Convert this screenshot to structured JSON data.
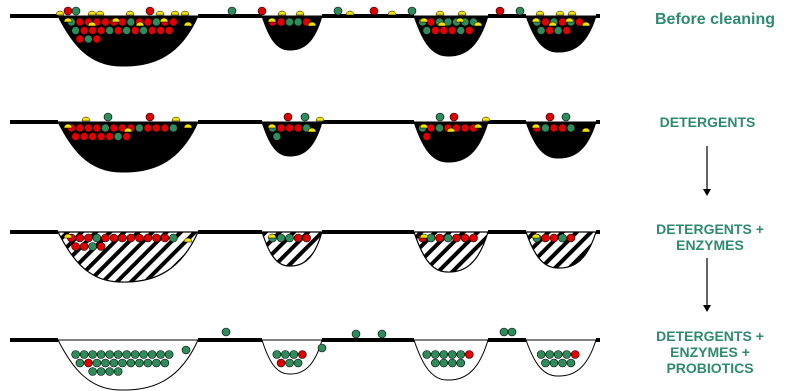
{
  "stages": [
    {
      "label": "Before cleaning",
      "fill": "dirt",
      "pits": [
        {
          "red": 20,
          "green": 8,
          "yellow": 6
        },
        {
          "red": 3,
          "green": 2,
          "yellow": 2
        },
        {
          "red": 5,
          "green": 8,
          "yellow": 4
        },
        {
          "red": 5,
          "green": 5,
          "yellow": 4
        }
      ]
    },
    {
      "label": "DETERGENTS",
      "fill": "dirt",
      "pits": [
        {
          "red": 16,
          "green": 4,
          "yellow": 3
        },
        {
          "red": 3,
          "green": 3,
          "yellow": 2
        },
        {
          "red": 6,
          "green": 2,
          "yellow": 3
        },
        {
          "red": 3,
          "green": 2,
          "yellow": 2
        }
      ]
    },
    {
      "label": "DETERGENTS +\nENZYMES",
      "fill": "hatched",
      "pits": [
        {
          "red": 14,
          "green": 3,
          "yellow": 2
        },
        {
          "red": 2,
          "green": 3,
          "yellow": 1
        },
        {
          "red": 5,
          "green": 2,
          "yellow": 1
        },
        {
          "red": 3,
          "green": 2,
          "yellow": 1
        }
      ]
    },
    {
      "label": "DETERGENTS +\nENZYMES +\nPROBIOTICS",
      "fill": "clean",
      "pits": [
        {
          "red": 1,
          "green": 26,
          "yellow": 0
        },
        {
          "red": 2,
          "green": 7,
          "yellow": 0
        },
        {
          "red": 1,
          "green": 9,
          "yellow": 0
        },
        {
          "red": 1,
          "green": 8,
          "yellow": 0
        }
      ]
    }
  ],
  "colors": {
    "surface": "#000000",
    "dirt": "#000000",
    "red_microbe": "#e00000",
    "green_microbe": "#2e8b5a",
    "yellow_microbe": "#f5e400",
    "label": "#2e8b6f",
    "arrow": "#000000"
  },
  "icons": {
    "flow_arrow": "arrow-down-icon"
  }
}
